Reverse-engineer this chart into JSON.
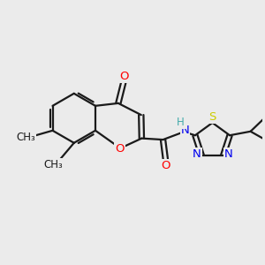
{
  "background_color": "#ebebeb",
  "bond_color": "#1a1a1a",
  "atom_colors": {
    "O": "#ff0000",
    "N": "#0000ee",
    "S": "#cccc00",
    "H": "#44aaaa",
    "C": "#1a1a1a"
  },
  "figsize": [
    3.0,
    3.0
  ],
  "dpi": 100
}
